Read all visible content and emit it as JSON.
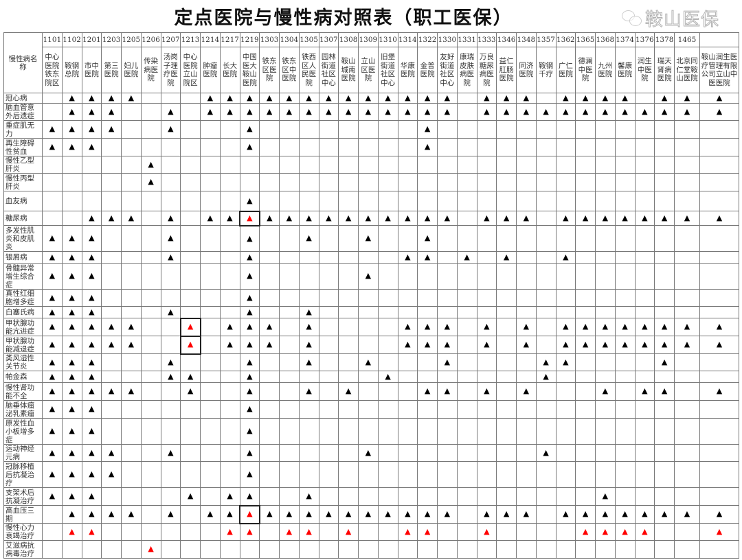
{
  "title": "定点医院与慢性病对照表（职工医保）",
  "label_header": "慢性病名称",
  "mark_symbol": "▲",
  "mark_colors": {
    "x": "#000000",
    "r": "#ff0000"
  },
  "last_hospital_color": "#ff0000",
  "hospitals": [
    {
      "code": "1101",
      "name": "中心医院铁东院区"
    },
    {
      "code": "1102",
      "name": "鞍钢总院"
    },
    {
      "code": "1201",
      "name": "市中医院"
    },
    {
      "code": "1203",
      "name": "第三医院"
    },
    {
      "code": "1205",
      "name": "妇儿医院"
    },
    {
      "code": "1206",
      "name": "传染病医院"
    },
    {
      "code": "1207",
      "name": "汤岗子理疗医院"
    },
    {
      "code": "1213",
      "name": "中心医院立山院区"
    },
    {
      "code": "1214",
      "name": "肿瘤医院"
    },
    {
      "code": "1217",
      "name": "长大医院"
    },
    {
      "code": "1219",
      "name": "中国医大鞍山医院"
    },
    {
      "code": "1303",
      "name": "铁东区医院"
    },
    {
      "code": "1304",
      "name": "铁东区中医院"
    },
    {
      "code": "1305",
      "name": "铁西区人民医院"
    },
    {
      "code": "1307",
      "name": "园林街道社区中心"
    },
    {
      "code": "1308",
      "name": "鞍山城南医院"
    },
    {
      "code": "1309",
      "name": "立山区医院"
    },
    {
      "code": "1310",
      "name": "旧堡街道社区中心"
    },
    {
      "code": "1314",
      "name": "华康医院"
    },
    {
      "code": "1322",
      "name": "金普医院"
    },
    {
      "code": "1330",
      "name": "友好街道社区中心"
    },
    {
      "code": "1331",
      "name": "康瑞皮肤病医院"
    },
    {
      "code": "1333",
      "name": "万良糖尿病医院"
    },
    {
      "code": "1346",
      "name": "益仁肛肠医院"
    },
    {
      "code": "1348",
      "name": "同济医院"
    },
    {
      "code": "1357",
      "name": "鞍钢千疗"
    },
    {
      "code": "1362",
      "name": "广仁医院"
    },
    {
      "code": "1365",
      "name": "德澜中医院"
    },
    {
      "code": "1368",
      "name": "九州医院"
    },
    {
      "code": "1374",
      "name": "馨康医院"
    },
    {
      "code": "1376",
      "name": "润生中医院"
    },
    {
      "code": "1378",
      "name": "瑞天肾病医院"
    },
    {
      "code": "1465",
      "name": "北京同仁堂鞍山医院"
    },
    {
      "code": "",
      "name": "鞍山润生医疗管理有限公司立山中医医院"
    }
  ],
  "diseases": [
    {
      "name": "冠心病",
      "marks": ".xxxx...xxxxxxxxxxxxx.xxx.xxxx.xxx"
    },
    {
      "name": "脑血管意外后遗症",
      "marks": ".xxx..x.xxxxxxxxxxxxx.xxxxxxxxxxxx"
    },
    {
      "name": "重症肌无力",
      "marks": "xxxx..x...x........x.............."
    },
    {
      "name": "再生障碍性贫血",
      "marks": "xxx.......x........x.............."
    },
    {
      "name": "慢性乙型肝炎",
      "marks": ".....x............................"
    },
    {
      "name": "慢性丙型肝炎",
      "marks": ".....x............................"
    },
    {
      "name": "血友病",
      "marks": "..........x......................."
    },
    {
      "name": "糖尿病",
      "marks": "..xxx.x.xxrxxxxxxxxxx.xxx.xxxxxxxx"
    },
    {
      "name": "多发性肌炎和皮肌炎",
      "marks": "xxx...x...x..x..x..x.............."
    },
    {
      "name": "银屑病",
      "marks": "xxx...x...x.......xx.x.x..x......."
    },
    {
      "name": "骨髓异常增生综合症",
      "marks": "xxx.......x.....x................."
    },
    {
      "name": "真性红细胞增多症",
      "marks": "xxx.......x......................."
    },
    {
      "name": "白塞氏病",
      "marks": "xxx...x...x..x...................."
    },
    {
      "name": "甲状腺功能亢进症",
      "marks": "xxxxx..r.xxx.x....xxx.x.x.xxxxxxxx"
    },
    {
      "name": "甲状腺功能减退症",
      "marks": "xxxxx..r.xxx.x....xxx.x.x.xxxxxxxx"
    },
    {
      "name": "类风湿性关节炎",
      "marks": "xxx...x...x..x..x...x....xx....x.."
    },
    {
      "name": "帕金森",
      "marks": "xxx...xx..x......x.......x........"
    },
    {
      "name": "慢性肾功能不全",
      "marks": "xxxxx..x..x..x.x...xx.x.x...x.xx.x"
    },
    {
      "name": "脑垂体瘤泌乳素瘤",
      "marks": "xxx.......x......................."
    },
    {
      "name": "原发性血小板增多症",
      "marks": "xxx.......x......................."
    },
    {
      "name": "运动神经元病",
      "marks": "xxxx..x...x.....x........x........"
    },
    {
      "name": "冠脉移植后抗凝治疗",
      "marks": "xxxx......x......................."
    },
    {
      "name": "支架术后抗凝治疗",
      "marks": "xxx....x.xx..x..............x....."
    },
    {
      "name": "高血压三期",
      "marks": ".xxxx.x.xxrxxxxxxxxxx.xxx.xxxxxxxx"
    },
    {
      "name": "慢性心力衰竭治疗",
      "marks": ".rr......rr.rr.r..rr..r....rrrr..r"
    },
    {
      "name": "艾滋病抗病毒治疗",
      "marks": ".....r............................"
    }
  ],
  "watermark": {
    "icon": "wechat-icon",
    "text": "鞍山医保"
  }
}
